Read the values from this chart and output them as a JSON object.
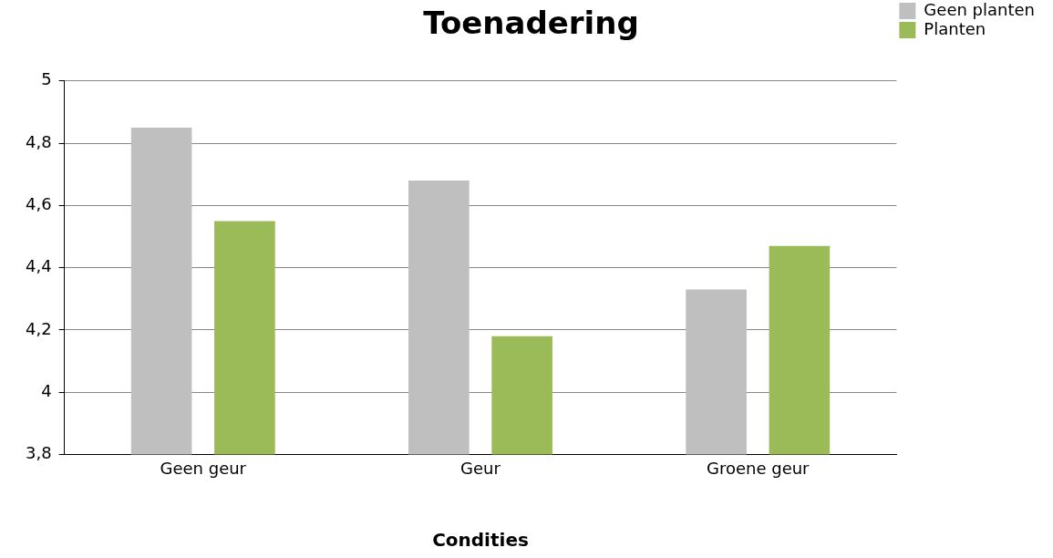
{
  "chart_data": {
    "type": "bar",
    "title": "Toenadering",
    "xlabel": "Condities",
    "categories": [
      "Geen geur",
      "Geur",
      "Groene geur"
    ],
    "series": [
      {
        "name": "Geen planten",
        "color": "#bfbfbf",
        "values": [
          4.85,
          4.68,
          4.33
        ]
      },
      {
        "name": "Planten",
        "color": "#9bbb59",
        "values": [
          4.55,
          4.18,
          4.47
        ]
      }
    ],
    "ylim": [
      3.8,
      5
    ],
    "yticks": [
      {
        "value": 3.8,
        "label": "3,8"
      },
      {
        "value": 4,
        "label": "4"
      },
      {
        "value": 4.2,
        "label": "4,2"
      },
      {
        "value": 4.4,
        "label": "4,4"
      },
      {
        "value": 4.6,
        "label": "4,6"
      },
      {
        "value": 4.8,
        "label": "4,8"
      },
      {
        "value": 5,
        "label": "5"
      }
    ],
    "grid": "y",
    "legend": "top right"
  }
}
